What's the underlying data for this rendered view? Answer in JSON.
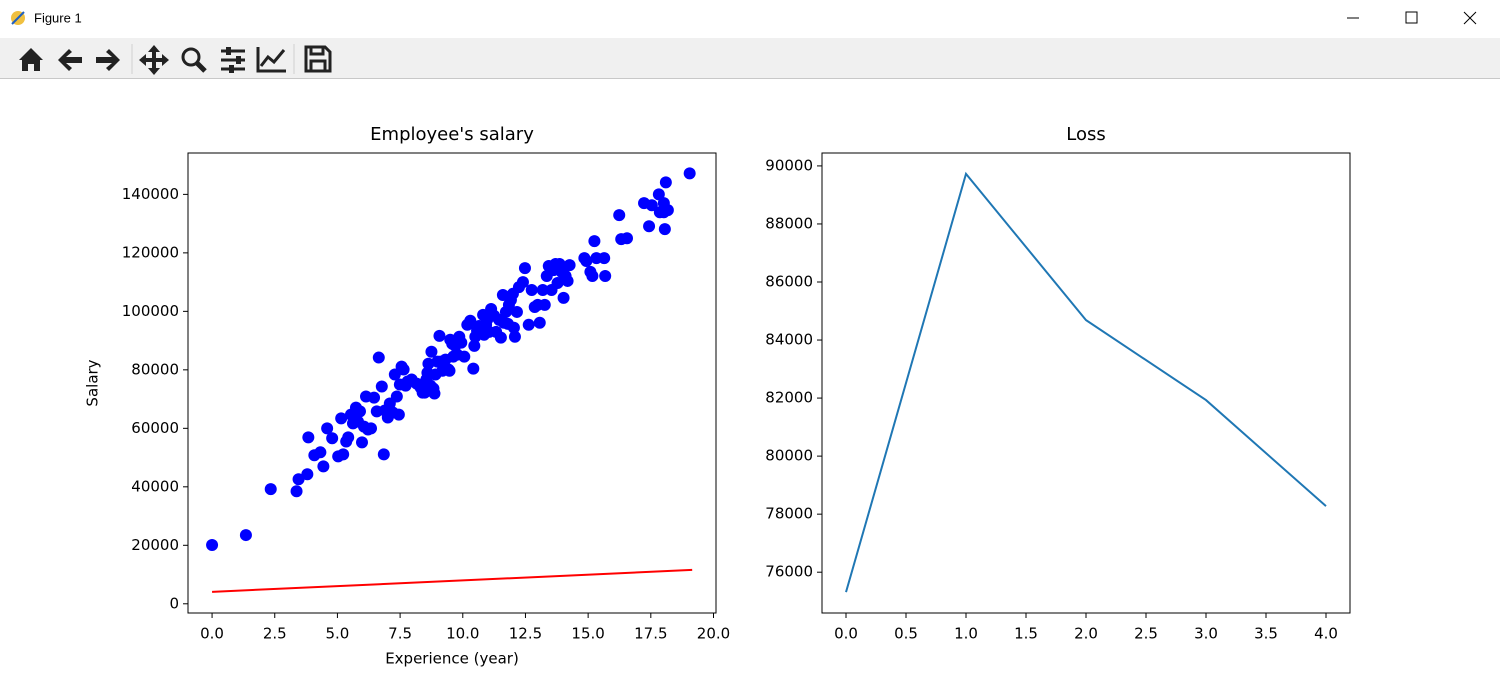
{
  "window": {
    "title": "Figure 1"
  },
  "chart_data": [
    {
      "type": "scatter",
      "title": "Employee's salary",
      "x_label": "Experience (year)",
      "y_label": "Salary",
      "xlim": [
        -0.96,
        20.1
      ],
      "ylim": [
        -3150,
        154150
      ],
      "xticks": [
        {
          "value": 0,
          "label": "0.0"
        },
        {
          "value": 2.5,
          "label": "2.5"
        },
        {
          "value": 5,
          "label": "5.0"
        },
        {
          "value": 7.5,
          "label": "7.5"
        },
        {
          "value": 10,
          "label": "10.0"
        },
        {
          "value": 12.5,
          "label": "12.5"
        },
        {
          "value": 15,
          "label": "15.0"
        },
        {
          "value": 17.5,
          "label": "17.5"
        },
        {
          "value": 20,
          "label": "20.0"
        }
      ],
      "yticks": [
        0,
        20000,
        40000,
        60000,
        80000,
        100000,
        120000,
        140000
      ],
      "series": [
        {
          "type": "scatter",
          "color": "#0000ff",
          "x": [
            0,
            1.35,
            2.34,
            3.37,
            3.45,
            3.8,
            3.84,
            4.08,
            4.32,
            4.44,
            4.59,
            4.79,
            5.03,
            5.15,
            5.23,
            5.35,
            5.43,
            5.54,
            5.62,
            5.74,
            5.82,
            5.9,
            5.98,
            6.06,
            6.14,
            6.22,
            6.34,
            6.46,
            6.57,
            6.65,
            6.77,
            6.85,
            6.89,
            7.01,
            7.09,
            7.21,
            7.29,
            7.37,
            7.45,
            7.49,
            7.56,
            7.64,
            7.72,
            7.8,
            7.96,
            8.16,
            8.32,
            8.4,
            8.48,
            8.55,
            8.59,
            8.63,
            8.71,
            8.75,
            8.83,
            8.87,
            8.91,
            8.99,
            9.07,
            9.11,
            9.19,
            9.31,
            9.43,
            9.47,
            9.5,
            9.58,
            9.62,
            9.7,
            9.78,
            9.86,
            9.94,
            10.06,
            10.18,
            10.3,
            10.42,
            10.46,
            10.5,
            10.57,
            10.65,
            10.81,
            10.85,
            10.93,
            10.97,
            11.05,
            11.13,
            11.25,
            11.33,
            11.45,
            11.52,
            11.6,
            11.64,
            11.72,
            11.8,
            11.84,
            11.92,
            12,
            12.04,
            12.08,
            12.16,
            12.24,
            12.4,
            12.48,
            12.63,
            12.75,
            12.87,
            12.99,
            13.07,
            13.19,
            13.27,
            13.35,
            13.43,
            13.54,
            13.62,
            13.7,
            13.78,
            13.86,
            13.94,
            14.02,
            14.1,
            14.18,
            14.26,
            14.85,
            14.93,
            15.09,
            15.17,
            15.25,
            15.33,
            15.64,
            15.68,
            16.24,
            16.32,
            16.55,
            17.23,
            17.43,
            17.54,
            17.82,
            17.86,
            18.02,
            18.02,
            18.06,
            18.1,
            18.18,
            19.05
          ],
          "values": [
            20100,
            23500,
            39200,
            38500,
            42600,
            44300,
            56900,
            50800,
            51800,
            47000,
            60000,
            56600,
            50400,
            63400,
            51100,
            55500,
            56900,
            64700,
            61700,
            67100,
            62300,
            65800,
            55200,
            60600,
            70900,
            59600,
            60000,
            70500,
            65800,
            84200,
            74300,
            51100,
            66100,
            63700,
            68500,
            65400,
            78400,
            70900,
            64700,
            75000,
            81100,
            80100,
            74600,
            76000,
            76700,
            75300,
            73900,
            72200,
            72200,
            76700,
            79000,
            82100,
            74600,
            86200,
            73600,
            71900,
            78400,
            82800,
            91600,
            82800,
            79700,
            83500,
            80100,
            79700,
            90300,
            88900,
            84500,
            88200,
            85200,
            91300,
            89300,
            84500,
            95400,
            96800,
            80400,
            88200,
            91300,
            93400,
            95000,
            98800,
            92000,
            95400,
            97100,
            93000,
            100800,
            98500,
            93000,
            97100,
            91000,
            105600,
            96100,
            99800,
            95700,
            102200,
            103900,
            106000,
            94400,
            91300,
            99800,
            108300,
            110000,
            114800,
            95400,
            107300,
            101500,
            102200,
            96100,
            107300,
            102200,
            112100,
            115500,
            107300,
            114100,
            116200,
            109700,
            116200,
            113500,
            104600,
            112100,
            110400,
            115800,
            118200,
            117200,
            113500,
            112100,
            124000,
            118200,
            118200,
            112100,
            132900,
            124700,
            125000,
            137000,
            129100,
            136300,
            140000,
            133900,
            137000,
            133900,
            128100,
            144100,
            134600,
            147200
          ]
        },
        {
          "type": "line",
          "color": "#ff0000",
          "x": [
            0,
            19.15
          ],
          "values": [
            4090,
            11580
          ]
        }
      ]
    },
    {
      "type": "line",
      "title": "Loss",
      "xlim": [
        -0.2,
        4.2
      ],
      "ylim": [
        74594,
        90445
      ],
      "xticks": [
        {
          "value": 0,
          "label": "0.0"
        },
        {
          "value": 0.5,
          "label": "0.5"
        },
        {
          "value": 1,
          "label": "1.0"
        },
        {
          "value": 1.5,
          "label": "1.5"
        },
        {
          "value": 2,
          "label": "2.0"
        },
        {
          "value": 2.5,
          "label": "2.5"
        },
        {
          "value": 3,
          "label": "3.0"
        },
        {
          "value": 3.5,
          "label": "3.5"
        },
        {
          "value": 4,
          "label": "4.0"
        }
      ],
      "yticks": [
        76000,
        78000,
        80000,
        82000,
        84000,
        86000,
        88000,
        90000
      ],
      "series": [
        {
          "type": "line",
          "color": "#1f77b4",
          "x": [
            0,
            1,
            2,
            3,
            4
          ],
          "values": [
            75314,
            89725,
            84686,
            81931,
            78275
          ]
        }
      ]
    }
  ]
}
